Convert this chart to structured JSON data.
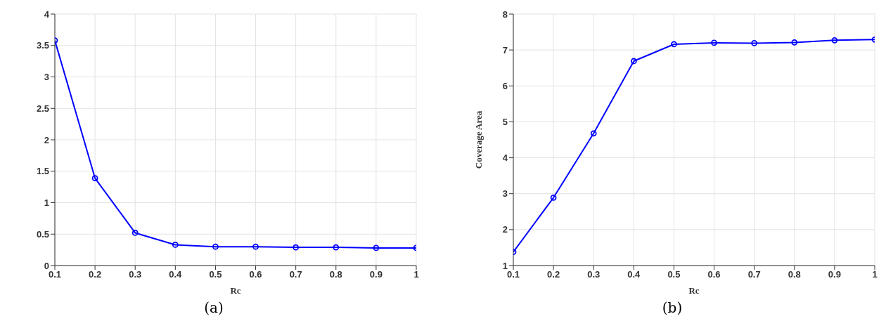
{
  "chart_data": [
    {
      "type": "line",
      "xlabel": "Rc",
      "x": [
        0.1,
        0.2,
        0.3,
        0.4,
        0.5,
        0.6,
        0.7,
        0.8,
        0.9,
        1
      ],
      "series": [
        {
          "color": "#0000ff",
          "values": [
            3.58,
            1.39,
            0.52,
            0.33,
            0.3,
            0.3,
            0.29,
            0.29,
            0.28,
            0.28
          ]
        }
      ],
      "xlim": [
        0.1,
        1
      ],
      "xticks": [
        0.1,
        0.2,
        0.3,
        0.4,
        0.5,
        0.6,
        0.7,
        0.8,
        0.9,
        1
      ],
      "ylim": [
        0,
        4
      ],
      "yticks": [
        0,
        0.5,
        1,
        1.5,
        2,
        2.5,
        3,
        3.5,
        4
      ],
      "grid": true,
      "marker": "circle",
      "line_style": "solid",
      "annotations": [
        "(a)"
      ]
    },
    {
      "type": "line",
      "xlabel": "Rc",
      "ylabel": "Coverage Area",
      "x": [
        0.1,
        0.2,
        0.3,
        0.4,
        0.5,
        0.6,
        0.7,
        0.8,
        0.9,
        1
      ],
      "series": [
        {
          "color": "#0000ff",
          "values": [
            1.38,
            2.89,
            4.68,
            6.69,
            7.16,
            7.2,
            7.19,
            7.21,
            7.27,
            7.29
          ]
        }
      ],
      "xlim": [
        0.1,
        1
      ],
      "xticks": [
        0.1,
        0.2,
        0.3,
        0.4,
        0.5,
        0.6,
        0.7,
        0.8,
        0.9,
        1
      ],
      "ylim": [
        1,
        8
      ],
      "yticks": [
        1,
        2,
        3,
        4,
        5,
        6,
        7,
        8
      ],
      "grid": true,
      "marker": "circle",
      "line_style": "solid",
      "annotations": [
        "(b)"
      ]
    }
  ]
}
